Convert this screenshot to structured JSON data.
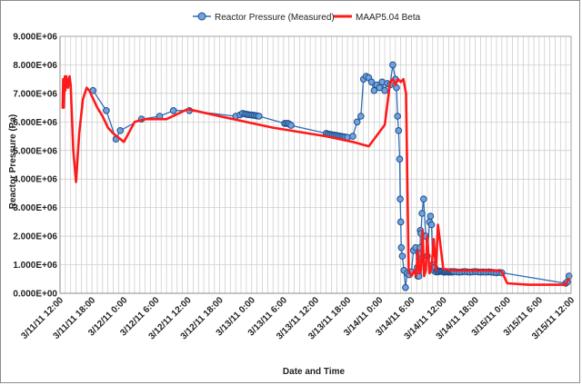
{
  "chart_data": {
    "type": "line",
    "title": "",
    "xlabel": "Date and Time",
    "ylabel": "Reactor Pressure (Pa)",
    "x_tick_labels": [
      "3/11/11 12:00",
      "3/11/11 18:00",
      "3/12/11 0:00",
      "3/12/11 6:00",
      "3/12/11 12:00",
      "3/12/11 18:00",
      "3/13/11 0:00",
      "3/13/11 6:00",
      "3/13/11 12:00",
      "3/13/11 18:00",
      "3/14/11 0:00",
      "3/14/11 6:00",
      "3/14/11 12:00",
      "3/14/11 18:00",
      "3/15/11 0:00",
      "3/15/11 6:00",
      "3/15/11 12:00"
    ],
    "y_tick_labels": [
      "0.000E+00",
      "1.000E+06",
      "2.000E+06",
      "3.000E+06",
      "4.000E+06",
      "5.000E+06",
      "6.000E+06",
      "7.000E+06",
      "8.000E+06",
      "9.000E+06"
    ],
    "x_unit": "hours from 3/11/11 12:00",
    "xlim": [
      0,
      96
    ],
    "ylim": [
      0,
      9000000
    ],
    "grid": true,
    "legend": "top",
    "series": [
      {
        "name": "Reactor Pressure (Measured)",
        "color": "#2f6db5",
        "marker_fill": "#6fa3dd",
        "style": "line-markers",
        "x": [
          6.2,
          8.7,
          10.5,
          11.3,
          15.3,
          18.7,
          21.3,
          24.3,
          33.0,
          33.8,
          34.3,
          34.7,
          35.0,
          35.3,
          35.6,
          35.9,
          36.2,
          36.5,
          36.8,
          37.1,
          37.4,
          42.2,
          42.5,
          42.8,
          43.1,
          43.4,
          50.0,
          50.3,
          50.6,
          50.9,
          51.2,
          51.5,
          51.8,
          52.1,
          52.4,
          52.7,
          53.0,
          53.3,
          53.6,
          54.0,
          55.0,
          55.8,
          56.5,
          57.0,
          57.5,
          58.0,
          58.5,
          59.0,
          59.5,
          60.0,
          60.5,
          61.0,
          61.5,
          62.0,
          62.5,
          63.0,
          63.2,
          63.4,
          63.6,
          63.8,
          63.9,
          64.0,
          64.1,
          64.3,
          64.6,
          64.9,
          65.2,
          65.6,
          66.0,
          66.4,
          66.8,
          67.1,
          67.2,
          67.3,
          67.4,
          67.45,
          67.5,
          67.55,
          67.6,
          67.65,
          67.7,
          67.8,
          68.0,
          68.3,
          68.7,
          69.0,
          69.4,
          69.6,
          69.8,
          70.0,
          70.2,
          70.4,
          70.6,
          70.8,
          71.0,
          71.2,
          71.4,
          71.6,
          71.8,
          72.0,
          72.2,
          72.4,
          72.6,
          72.8,
          73.0,
          73.2,
          73.4,
          73.6,
          73.8,
          74.0,
          74.5,
          75.0,
          75.5,
          76.0,
          76.5,
          77.0,
          77.5,
          78.0,
          78.5,
          79.0,
          79.5,
          80.0,
          80.5,
          81.0,
          81.5,
          82.0,
          82.5,
          83.0,
          95.0,
          95.3,
          95.6
        ],
        "y": [
          7100000,
          6400000,
          5400000,
          5700000,
          6100000,
          6200000,
          6400000,
          6400000,
          6200000,
          6250000,
          6300000,
          6280000,
          6270000,
          6260000,
          6250000,
          6250000,
          6240000,
          6230000,
          6220000,
          6210000,
          6200000,
          5950000,
          5950000,
          5950000,
          5920000,
          5880000,
          5600000,
          5580000,
          5570000,
          5560000,
          5550000,
          5540000,
          5530000,
          5520000,
          5510000,
          5500000,
          5490000,
          5480000,
          5470000,
          5460000,
          5500000,
          6000000,
          6200000,
          7500000,
          7600000,
          7550000,
          7400000,
          7100000,
          7300000,
          7200000,
          7400000,
          7100000,
          7350000,
          7300000,
          8000000,
          7500000,
          7200000,
          6200000,
          5700000,
          4700000,
          3300000,
          2500000,
          1600000,
          1300000,
          800000,
          200000,
          700000,
          650000,
          750000,
          1500000,
          1600000,
          900000,
          600000,
          700000,
          600000,
          1200000,
          1300000,
          1500000,
          1400000,
          1600000,
          2200000,
          2100000,
          2800000,
          3300000,
          2000000,
          1300000,
          2500000,
          2700000,
          2400000,
          1000000,
          800000,
          900000,
          750000,
          800000,
          750000,
          760000,
          780000,
          770000,
          760000,
          750000,
          740000,
          750000,
          760000,
          750000,
          740000,
          750000,
          760000,
          740000,
          750000,
          760000,
          750000,
          740000,
          750000,
          760000,
          750000,
          740000,
          750000,
          760000,
          750000,
          740000,
          750000,
          740000,
          750000,
          740000,
          730000,
          720000,
          730000,
          720000,
          350000,
          400000,
          600000
        ]
      },
      {
        "name": "MAAP5.04 Beta",
        "color": "#ff1a1a",
        "style": "line",
        "x": [
          0.5,
          0.6,
          0.7,
          0.9,
          1.0,
          1.2,
          1.5,
          1.8,
          2.0,
          2.5,
          3.0,
          3.6,
          4.3,
          5.0,
          5.5,
          6.0,
          7.0,
          8.0,
          9.0,
          10.0,
          12.0,
          14.0,
          16.0,
          20.0,
          24.0,
          30.0,
          40.0,
          50.0,
          55.0,
          58.0,
          61.0,
          62.0,
          62.5,
          63.0,
          63.5,
          64.0,
          64.5,
          65.0,
          65.5,
          66.0,
          66.3,
          66.6,
          66.9,
          67.2,
          67.5,
          67.8,
          68.1,
          68.4,
          68.7,
          69.0,
          69.4,
          69.8,
          70.2,
          70.6,
          71.0,
          72.0,
          74.0,
          76.0,
          78.0,
          80.0,
          82.0,
          83.0,
          84.0,
          88.0,
          92.0,
          95.0,
          95.5
        ],
        "y": [
          6500000,
          7500000,
          6500000,
          7600000,
          7100000,
          7600000,
          7200000,
          7600000,
          7300000,
          5000000,
          3900000,
          5600000,
          6800000,
          7200000,
          7100000,
          6900000,
          6500000,
          6200000,
          5800000,
          5600000,
          5300000,
          6000000,
          6100000,
          6100000,
          6450000,
          6200000,
          5800000,
          5500000,
          5300000,
          5150000,
          5900000,
          7400000,
          7500000,
          7300000,
          7500000,
          7400000,
          7500000,
          7000000,
          800000,
          600000,
          700000,
          800000,
          600000,
          1500000,
          700000,
          800000,
          2200000,
          600000,
          800000,
          2000000,
          700000,
          900000,
          1900000,
          800000,
          2400000,
          850000,
          800000,
          800000,
          800000,
          800000,
          800000,
          750000,
          350000,
          300000,
          300000,
          300000,
          500000
        ]
      }
    ]
  }
}
